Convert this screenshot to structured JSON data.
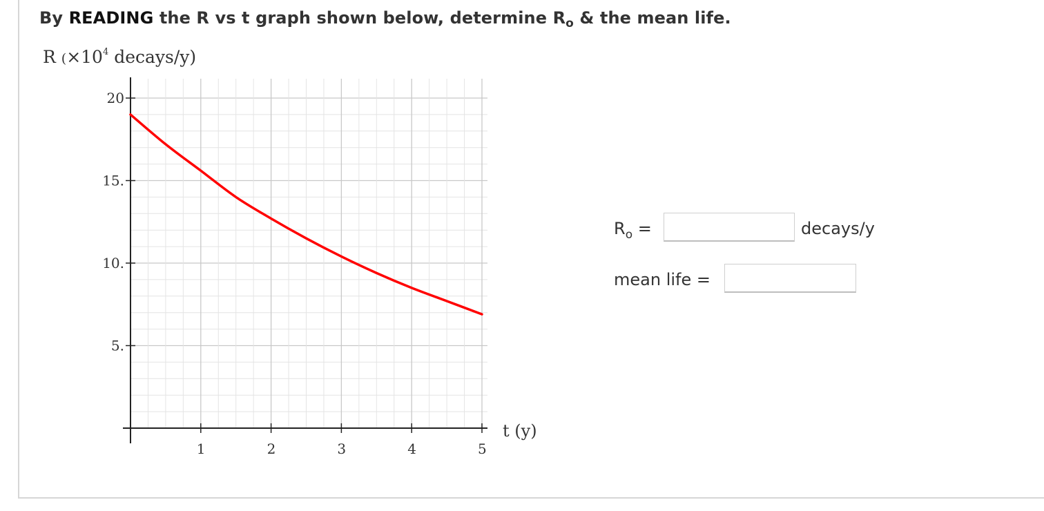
{
  "question": {
    "prefix": "By ",
    "emphasis": "READING",
    "middle": " the R vs t graph shown below, determine R",
    "sub": "o",
    "suffix": " & the mean life."
  },
  "chart_data": {
    "type": "line",
    "ylabel": {
      "base": "R ",
      "paren_open": "(",
      "times": "×10",
      "exp": "4",
      "rest": " decays/y)"
    },
    "xlabel": "t (y)",
    "xlim": [
      0,
      5
    ],
    "ylim": [
      0,
      20
    ],
    "x_ticks": [
      "1",
      "2",
      "3",
      "4",
      "5"
    ],
    "y_ticks": [
      "5.",
      "10.",
      "15.",
      "20"
    ],
    "grid": true,
    "curve_color": "#ff0000",
    "x": [
      0,
      0.5,
      1,
      1.5,
      2,
      2.5,
      3,
      3.5,
      4,
      4.5,
      5
    ],
    "y": [
      19.0,
      17.2,
      15.6,
      14.0,
      12.7,
      11.5,
      10.4,
      9.4,
      8.5,
      7.7,
      6.9
    ]
  },
  "form": {
    "r0_label": "R",
    "r0_sub": "o",
    "r0_eq": " =",
    "r0_value": "",
    "r0_unit": "decays/y",
    "mean_life_label": "mean life  =",
    "mean_life_value": ""
  }
}
